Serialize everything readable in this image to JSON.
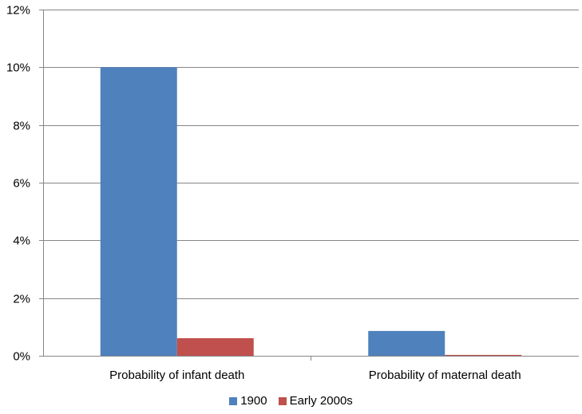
{
  "chart_data": {
    "type": "bar",
    "title": "",
    "xlabel": "",
    "ylabel": "",
    "categories": [
      "Probability of infant death",
      "Probability of maternal death"
    ],
    "series": [
      {
        "name": "1900",
        "color": "#4F81BD",
        "values": [
          10.0,
          0.86
        ]
      },
      {
        "name": "Early 2000s",
        "color": "#C0504D",
        "values": [
          0.61,
          0.03
        ]
      }
    ],
    "ylim": [
      0,
      12
    ],
    "yticks": [
      "0%",
      "2%",
      "4%",
      "6%",
      "8%",
      "10%",
      "12%"
    ],
    "grid": true,
    "legend": "bottom"
  }
}
